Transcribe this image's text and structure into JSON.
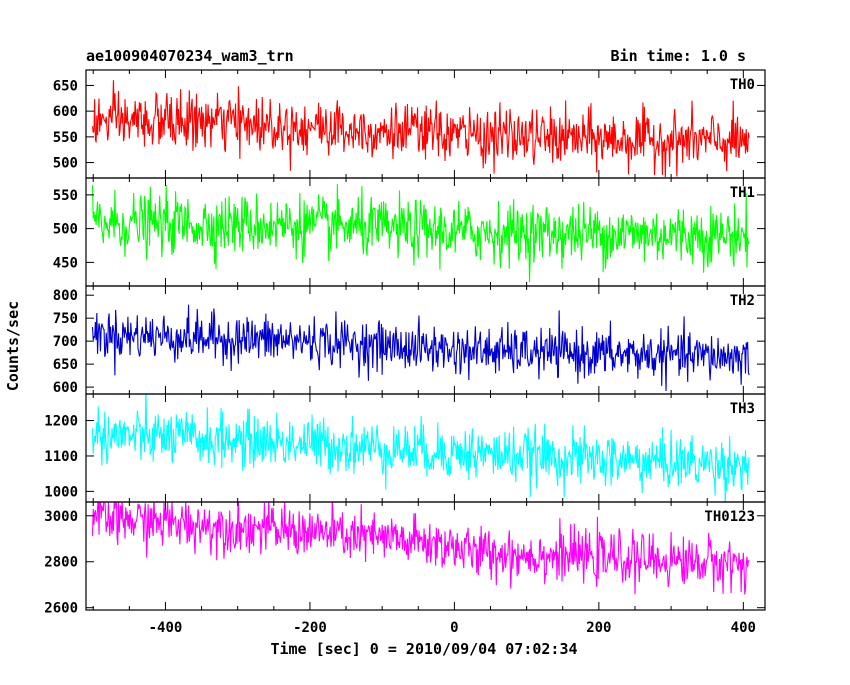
{
  "header": {
    "title": "ae100904070234_wam3_trn",
    "bin_time": "Bin time: 1.0 s"
  },
  "chart_data": {
    "type": "line",
    "xlabel": "Time [sec] 0 = 2010/09/04 07:02:34",
    "ylabel": "Counts/sec",
    "xlim": [
      -510,
      430
    ],
    "x_range_data": [
      -501,
      408
    ],
    "x_ticks": [
      "-400",
      "-200",
      "0",
      "200",
      "400"
    ],
    "x_tick_values": [
      -400,
      -200,
      0,
      200,
      400
    ],
    "panels": [
      {
        "name": "TH0",
        "color": "#ff0000",
        "ylim": [
          470,
          680
        ],
        "y_ticks": [
          "500",
          "550",
          "600",
          "650"
        ],
        "y_tick_values": [
          500,
          550,
          600,
          650
        ],
        "trend": [
          [
            -500,
            580
          ],
          [
            -350,
            580
          ],
          [
            -200,
            570
          ],
          [
            0,
            555
          ],
          [
            200,
            545
          ],
          [
            400,
            540
          ]
        ],
        "noise_sigma": 27
      },
      {
        "name": "TH1",
        "color": "#00ff00",
        "ylim": [
          415,
          575
        ],
        "y_ticks": [
          "450",
          "500",
          "550"
        ],
        "y_tick_values": [
          450,
          500,
          550
        ],
        "trend": [
          [
            -500,
            508
          ],
          [
            -200,
            505
          ],
          [
            0,
            495
          ],
          [
            200,
            493
          ],
          [
            400,
            490
          ]
        ],
        "noise_sigma": 22
      },
      {
        "name": "TH2",
        "color": "#0000cc",
        "ylim": [
          585,
          820
        ],
        "y_ticks": [
          "600",
          "650",
          "700",
          "750",
          "800"
        ],
        "y_tick_values": [
          600,
          650,
          700,
          750,
          800
        ],
        "trend": [
          [
            -500,
            715
          ],
          [
            -200,
            700
          ],
          [
            0,
            680
          ],
          [
            200,
            672
          ],
          [
            400,
            665
          ]
        ],
        "noise_sigma": 26
      },
      {
        "name": "TH3",
        "color": "#00ffff",
        "ylim": [
          970,
          1275
        ],
        "y_ticks": [
          "1000",
          "1100",
          "1200"
        ],
        "y_tick_values": [
          1000,
          1100,
          1200
        ],
        "trend": [
          [
            -500,
            1160
          ],
          [
            -200,
            1135
          ],
          [
            0,
            1110
          ],
          [
            200,
            1090
          ],
          [
            400,
            1075
          ]
        ],
        "noise_sigma": 38
      },
      {
        "name": "TH0123",
        "color": "#ff00ff",
        "ylim": [
          2590,
          3060
        ],
        "y_ticks": [
          "2600",
          "2800",
          "3000"
        ],
        "y_tick_values": [
          2600,
          2800,
          3000
        ],
        "trend": [
          [
            -500,
            2990
          ],
          [
            -200,
            2930
          ],
          [
            0,
            2870
          ],
          [
            20,
            2840
          ],
          [
            200,
            2820
          ],
          [
            400,
            2790
          ]
        ],
        "noise_sigma": 55
      }
    ]
  }
}
